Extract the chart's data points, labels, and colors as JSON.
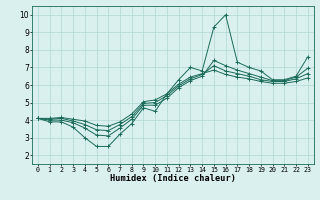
{
  "xlabel": "Humidex (Indice chaleur)",
  "xlim": [
    -0.5,
    23.5
  ],
  "ylim": [
    1.5,
    10.5
  ],
  "xticks": [
    0,
    1,
    2,
    3,
    4,
    5,
    6,
    7,
    8,
    9,
    10,
    11,
    12,
    13,
    14,
    15,
    16,
    17,
    18,
    19,
    20,
    21,
    22,
    23
  ],
  "yticks": [
    2,
    3,
    4,
    5,
    6,
    7,
    8,
    9,
    10
  ],
  "background_color": "#daf0ee",
  "grid_color": "#b0d8d4",
  "line_color": "#1a6b5a",
  "series": {
    "line1_y": [
      4.1,
      3.9,
      3.9,
      3.6,
      3.0,
      2.5,
      2.5,
      3.2,
      3.8,
      4.7,
      4.5,
      5.5,
      6.3,
      7.0,
      6.8,
      9.3,
      10.0,
      7.3,
      7.0,
      6.8,
      6.3,
      6.3,
      6.5,
      7.6
    ],
    "line2_y": [
      4.1,
      4.0,
      4.0,
      3.85,
      3.55,
      3.15,
      3.1,
      3.55,
      4.05,
      4.85,
      4.85,
      5.25,
      5.85,
      6.25,
      6.5,
      7.4,
      7.1,
      6.85,
      6.65,
      6.45,
      6.25,
      6.25,
      6.45,
      6.95
    ],
    "line3_y": [
      4.1,
      4.05,
      4.1,
      3.95,
      3.75,
      3.45,
      3.4,
      3.75,
      4.2,
      4.95,
      5.0,
      5.4,
      5.95,
      6.35,
      6.6,
      7.1,
      6.8,
      6.65,
      6.5,
      6.3,
      6.2,
      6.2,
      6.35,
      6.65
    ],
    "line4_y": [
      4.1,
      4.1,
      4.15,
      4.05,
      3.95,
      3.7,
      3.65,
      3.9,
      4.35,
      5.05,
      5.15,
      5.5,
      6.05,
      6.45,
      6.65,
      6.85,
      6.6,
      6.45,
      6.35,
      6.2,
      6.1,
      6.1,
      6.2,
      6.4
    ]
  }
}
